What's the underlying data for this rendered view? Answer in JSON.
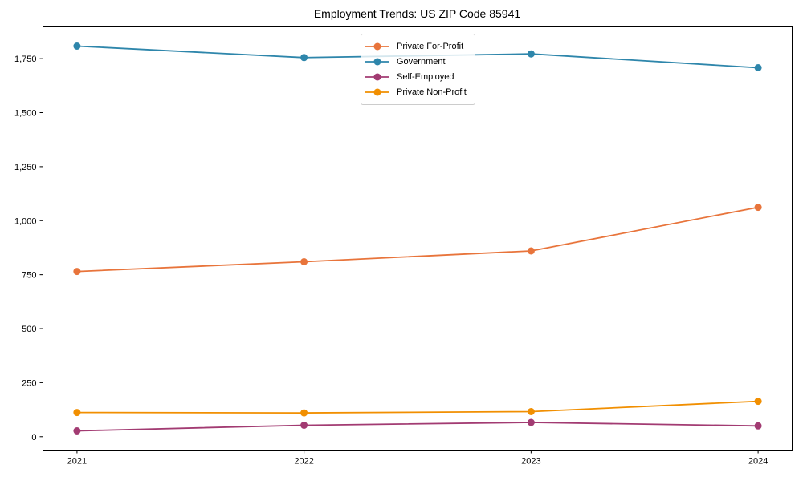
{
  "chart_data": {
    "type": "line",
    "title": "Employment Trends: US ZIP Code 85941",
    "x": [
      2021,
      2022,
      2023,
      2024
    ],
    "x_tick_labels": [
      "2021",
      "2022",
      "2023",
      "2024"
    ],
    "y_ticks": [
      0,
      250,
      500,
      750,
      1000,
      1250,
      1500,
      1750
    ],
    "y_tick_labels": [
      "0",
      "250",
      "500",
      "750",
      "1,000",
      "1,250",
      "1,500",
      "1,750"
    ],
    "series": [
      {
        "name": "Private For-Profit",
        "color": "#E8743B",
        "values": [
          765,
          810,
          860,
          1062
        ]
      },
      {
        "name": "Government",
        "color": "#2E86AB",
        "values": [
          1808,
          1755,
          1772,
          1708
        ]
      },
      {
        "name": "Self-Employed",
        "color": "#A23B72",
        "values": [
          27,
          53,
          66,
          50
        ]
      },
      {
        "name": "Private Non-Profit",
        "color": "#F18F01",
        "values": [
          112,
          110,
          116,
          164
        ]
      }
    ],
    "legend_position": "upper center",
    "grid": false,
    "background_color": "#ffffff",
    "axis_color": "#000000",
    "xlabel": "",
    "ylabel": ""
  }
}
